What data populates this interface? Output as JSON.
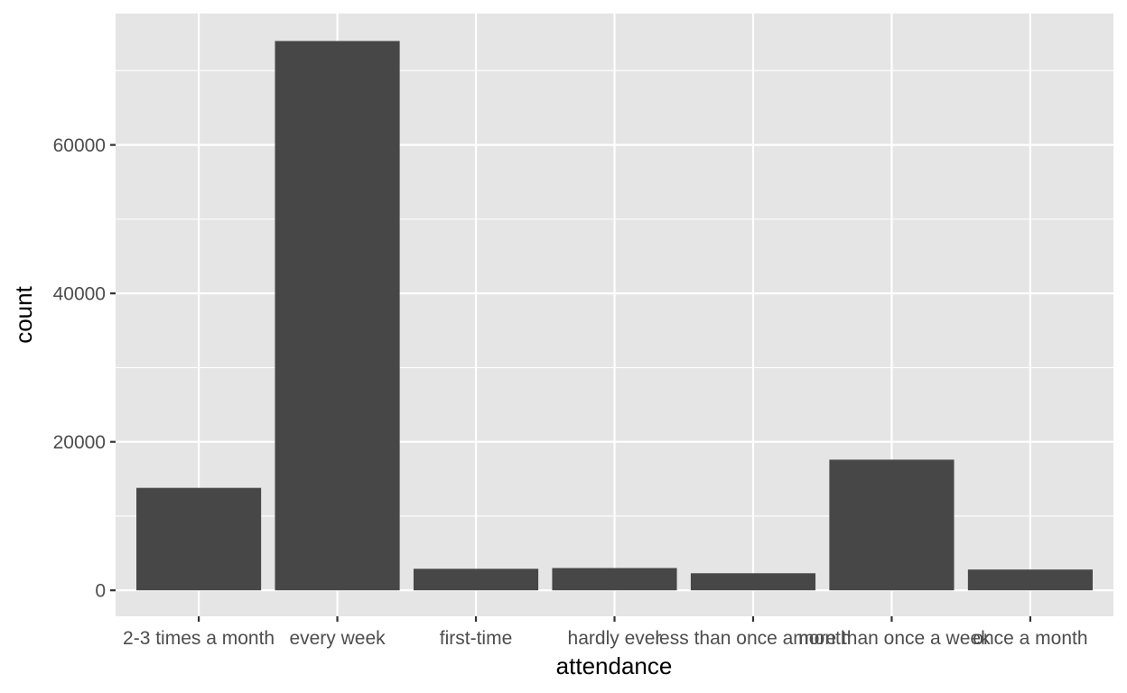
{
  "chart_data": {
    "type": "bar",
    "title": "",
    "xlabel": "attendance",
    "ylabel": "count",
    "categories": [
      "2-3 times a month",
      "every week",
      "first-time",
      "hardly ever",
      "less than once a month",
      "more than once a week",
      "once a month"
    ],
    "values": [
      13800,
      74000,
      2900,
      3000,
      2300,
      17600,
      2800
    ],
    "ylim": [
      -3500,
      77700
    ],
    "yticks": [
      0,
      20000,
      40000,
      60000
    ],
    "ytick_labels": [
      "0",
      "20000",
      "40000",
      "60000"
    ],
    "y_minor_ticks": [
      10000,
      30000,
      50000,
      70000
    ],
    "grid": true,
    "legend": "none",
    "colors": {
      "panel_background": "#e5e5e5",
      "grid_line": "#ffffff",
      "bar_fill": "#474747",
      "tick_mark": "#333333"
    }
  }
}
